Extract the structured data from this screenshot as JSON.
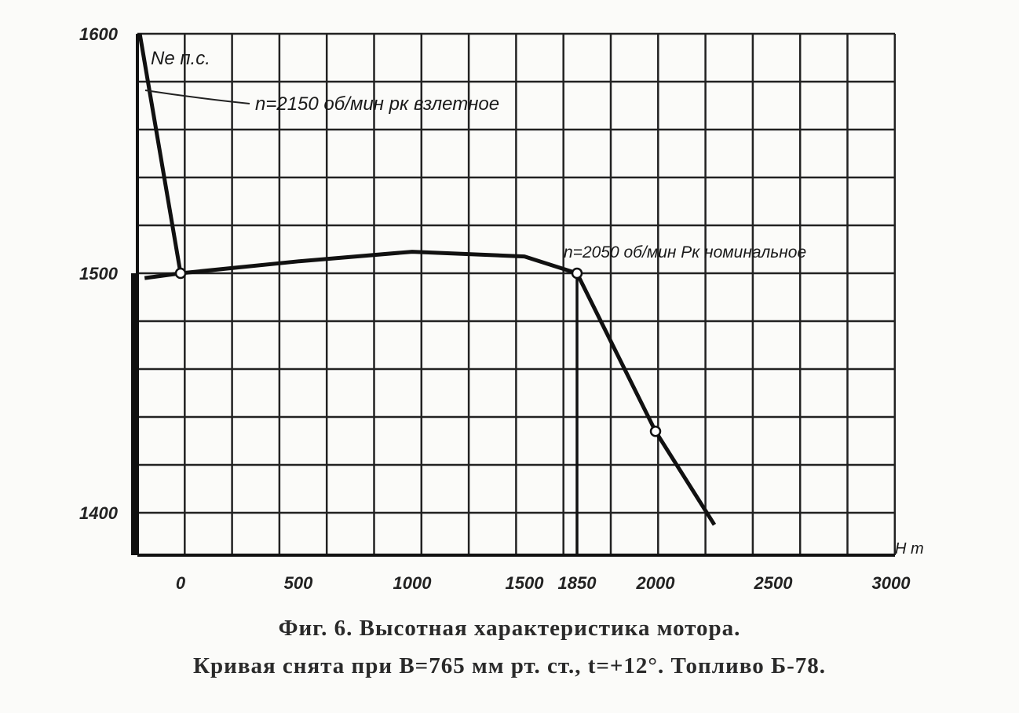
{
  "chart_data": {
    "type": "line",
    "ylabel": "Ne п.с.",
    "xlabel": "H m",
    "ylim": [
      1383,
      1600
    ],
    "xlim": [
      -180,
      3000
    ],
    "y_ticks": [
      1400,
      1500,
      1600
    ],
    "y_tick_labels": [
      "1400",
      "1500",
      "1600"
    ],
    "x_ticks": [
      0,
      500,
      1000,
      1500,
      1850,
      2000,
      2500,
      3000
    ],
    "x_tick_labels": [
      "0",
      "500",
      "1000",
      "1500",
      "1850",
      "2000",
      "2500",
      "3000"
    ],
    "grid": true,
    "series": [
      {
        "x": [
          -150,
          0,
          500,
          1000,
          1500,
          1850,
          2000,
          2250
        ],
        "y": [
          1498,
          1500,
          1505,
          1509,
          1507,
          1500,
          1434,
          1395
        ]
      },
      {
        "x": [
          -170,
          0
        ],
        "y": [
          1600,
          1500
        ]
      }
    ],
    "marked_points": [
      {
        "x": 0,
        "y": 1500
      },
      {
        "x": 1850,
        "y": 1500
      },
      {
        "x": 2000,
        "y": 1434
      }
    ],
    "annotations": [
      {
        "text": "n=2150 об/мин pк взлетное",
        "x": 0,
        "y": 1570
      },
      {
        "text": "n=2050 об/мин Pк номинальное",
        "x": 1850,
        "y": 1500
      }
    ],
    "caption": {
      "line1": "Фиг. 6. Высотная характеристика мотора.",
      "line2": "Кривая снята при B=765 мм рт. ст., t=+12°. Топливо Б-78."
    }
  }
}
